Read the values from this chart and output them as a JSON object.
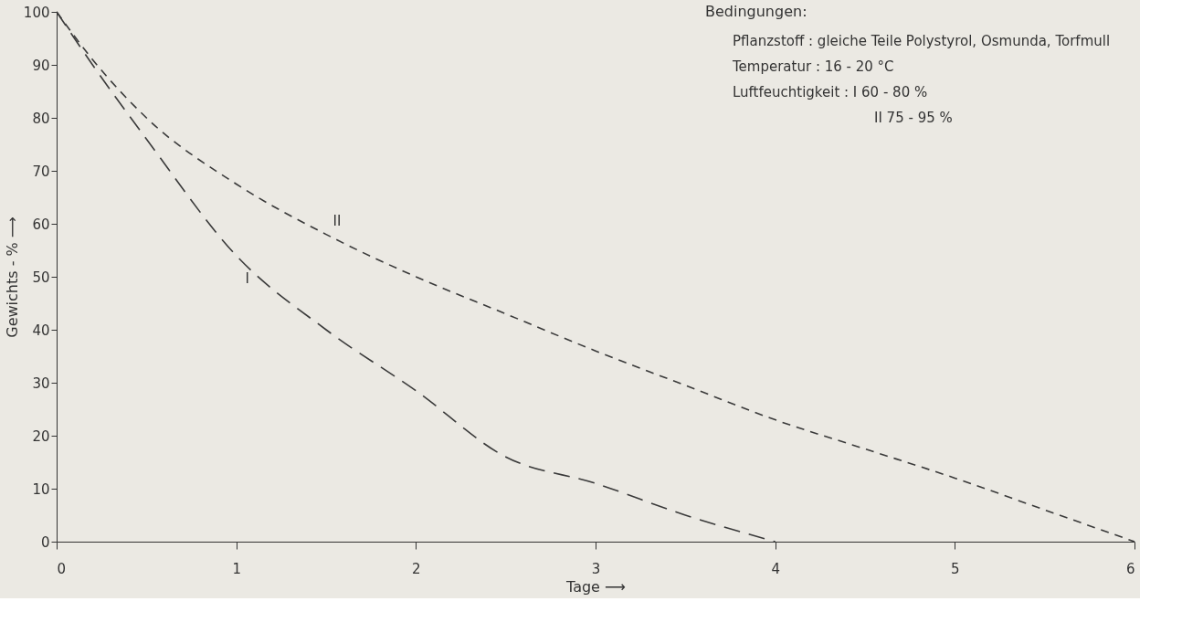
{
  "chart_data": {
    "type": "line",
    "title": "Bedingungen:",
    "xlabel": "Tage ⟶",
    "ylabel": "Gewichts - % ⟶",
    "x": [
      0,
      0.2,
      0.5,
      1,
      1.5,
      2,
      2.5,
      3,
      3.5,
      4,
      4.5,
      5,
      5.5,
      6
    ],
    "series": [
      {
        "name": "I",
        "color": "#3a3a3a",
        "line_style": "dashed",
        "values": [
          100,
          90,
          76,
          54,
          40,
          28.5,
          16,
          11,
          5,
          0,
          null,
          null,
          null,
          null
        ]
      },
      {
        "name": "II",
        "color": "#3a3a3a",
        "line_style": "dashed",
        "values": [
          100,
          91,
          80,
          67.5,
          58,
          50,
          43,
          36,
          29.5,
          23,
          17.5,
          12,
          6,
          0
        ]
      }
    ],
    "annotations": [
      "Pflanzstoff : gleiche Teile Polystyrol, Osmunda, Torfmull",
      "Temperatur :  16 - 20 °C",
      "Luftfeuchtigkeit :  I  60 - 80 %",
      "II  75 - 95 %"
    ],
    "xlim": [
      0,
      6
    ],
    "xticks": [
      0,
      1,
      2,
      3,
      4,
      5,
      6
    ],
    "ylim": [
      0,
      100
    ],
    "yticks": [
      0,
      10,
      20,
      30,
      40,
      50,
      60,
      70,
      80,
      90,
      100
    ],
    "grid": false,
    "legend": false
  }
}
